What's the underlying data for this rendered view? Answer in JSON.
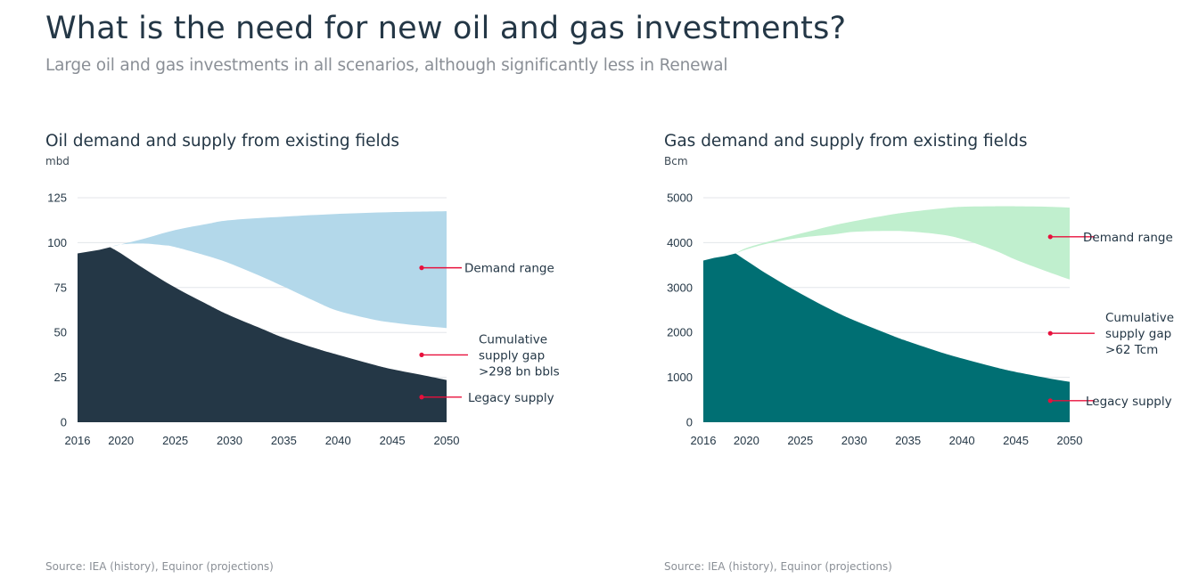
{
  "page": {
    "title": "What is the need for new oil and gas investments?",
    "subtitle": "Large oil and gas investments in all scenarios, although significantly less in Renewal"
  },
  "colors": {
    "oil_demand": "#b3d8ea",
    "oil_supply": "#243746",
    "gas_demand": "#c0efce",
    "gas_supply": "#006f73",
    "annotation": "#e8103c",
    "grid": "#e3e6ea"
  },
  "chart_data": [
    {
      "id": "oil",
      "type": "area",
      "title": "Oil demand and supply from existing fields",
      "ylabel": "mbd",
      "xlabel": "",
      "xlim": [
        2016,
        2050
      ],
      "ylim": [
        0,
        125
      ],
      "x_ticks": [
        2016,
        2020,
        2025,
        2030,
        2035,
        2040,
        2045,
        2050
      ],
      "y_ticks": [
        0,
        25,
        50,
        75,
        100,
        125
      ],
      "grid": true,
      "series": [
        {
          "name": "Demand range (high)",
          "x": [
            2019,
            2020,
            2022,
            2025,
            2028,
            2030,
            2035,
            2040,
            2045,
            2050
          ],
          "values": [
            97.5,
            99,
            102,
            107,
            110.5,
            112.5,
            114.5,
            116,
            117,
            117.5
          ]
        },
        {
          "name": "Demand range (low)",
          "x": [
            2019,
            2020,
            2022,
            2024,
            2025,
            2028,
            2030,
            2033,
            2035,
            2038,
            2040,
            2043,
            2045,
            2048,
            2050
          ],
          "values": [
            97.5,
            99,
            99.5,
            98.5,
            97.5,
            92.5,
            88.5,
            81,
            75.5,
            67,
            62,
            57.5,
            55.5,
            53.5,
            52.5
          ]
        },
        {
          "name": "Legacy supply",
          "x": [
            2016,
            2017,
            2018,
            2019,
            2020,
            2022,
            2025,
            2028,
            2030,
            2033,
            2035,
            2038,
            2040,
            2043,
            2045,
            2048,
            2050
          ],
          "values": [
            94,
            95,
            96,
            97.5,
            94,
            86,
            75,
            65.5,
            59.5,
            52,
            47,
            41,
            37.5,
            32.5,
            29.5,
            26,
            23.5
          ]
        }
      ],
      "annotations": [
        {
          "label": [
            "Demand range"
          ],
          "value": 86,
          "x": 2047.7
        },
        {
          "label": [
            "Cumulative",
            "supply gap",
            ">298 bn bbls"
          ],
          "value": 37.5,
          "x": 2047.7
        },
        {
          "label": [
            "Legacy supply"
          ],
          "value": 14,
          "x": 2047.7
        }
      ],
      "source": "Source: IEA (history), Equinor (projections)"
    },
    {
      "id": "gas",
      "type": "area",
      "title": "Gas demand and supply from existing fields",
      "ylabel": "Bcm",
      "xlabel": "",
      "xlim": [
        2016,
        2050
      ],
      "ylim": [
        0,
        5000
      ],
      "x_ticks": [
        2016,
        2020,
        2025,
        2030,
        2035,
        2040,
        2045,
        2050
      ],
      "y_ticks": [
        0,
        1000,
        2000,
        3000,
        4000,
        5000
      ],
      "grid": true,
      "series": [
        {
          "name": "Demand range (high)",
          "x": [
            2019,
            2020,
            2022,
            2025,
            2028,
            2030,
            2033,
            2035,
            2038,
            2040,
            2043,
            2045,
            2048,
            2050
          ],
          "values": [
            3760,
            3880,
            4020,
            4200,
            4380,
            4480,
            4610,
            4680,
            4760,
            4800,
            4810,
            4810,
            4800,
            4780
          ],
          "note": "upper boundary"
        },
        {
          "name": "Demand range (low)",
          "x": [
            2019,
            2020,
            2022,
            2025,
            2028,
            2030,
            2033,
            2035,
            2038,
            2040,
            2043,
            2045,
            2048,
            2050
          ],
          "values": [
            3760,
            3850,
            3980,
            4110,
            4180,
            4240,
            4260,
            4250,
            4180,
            4080,
            3830,
            3620,
            3350,
            3180
          ]
        },
        {
          "name": "Legacy supply",
          "x": [
            2016,
            2017,
            2018,
            2019,
            2020,
            2022,
            2025,
            2028,
            2030,
            2033,
            2035,
            2038,
            2040,
            2043,
            2045,
            2048,
            2050
          ],
          "values": [
            3600,
            3660,
            3700,
            3760,
            3600,
            3290,
            2870,
            2490,
            2270,
            1980,
            1800,
            1560,
            1420,
            1230,
            1120,
            980,
            900
          ]
        }
      ],
      "annotations": [
        {
          "label": [
            "Demand range"
          ],
          "value": 4130,
          "x": 2048.2
        },
        {
          "label": [
            "Cumulative",
            "supply gap",
            ">62 Tcm"
          ],
          "value": 1980,
          "x": 2048.2
        },
        {
          "label": [
            "Legacy supply"
          ],
          "value": 480,
          "x": 2048.2
        }
      ],
      "source": "Source: IEA (history), Equinor (projections)"
    }
  ]
}
